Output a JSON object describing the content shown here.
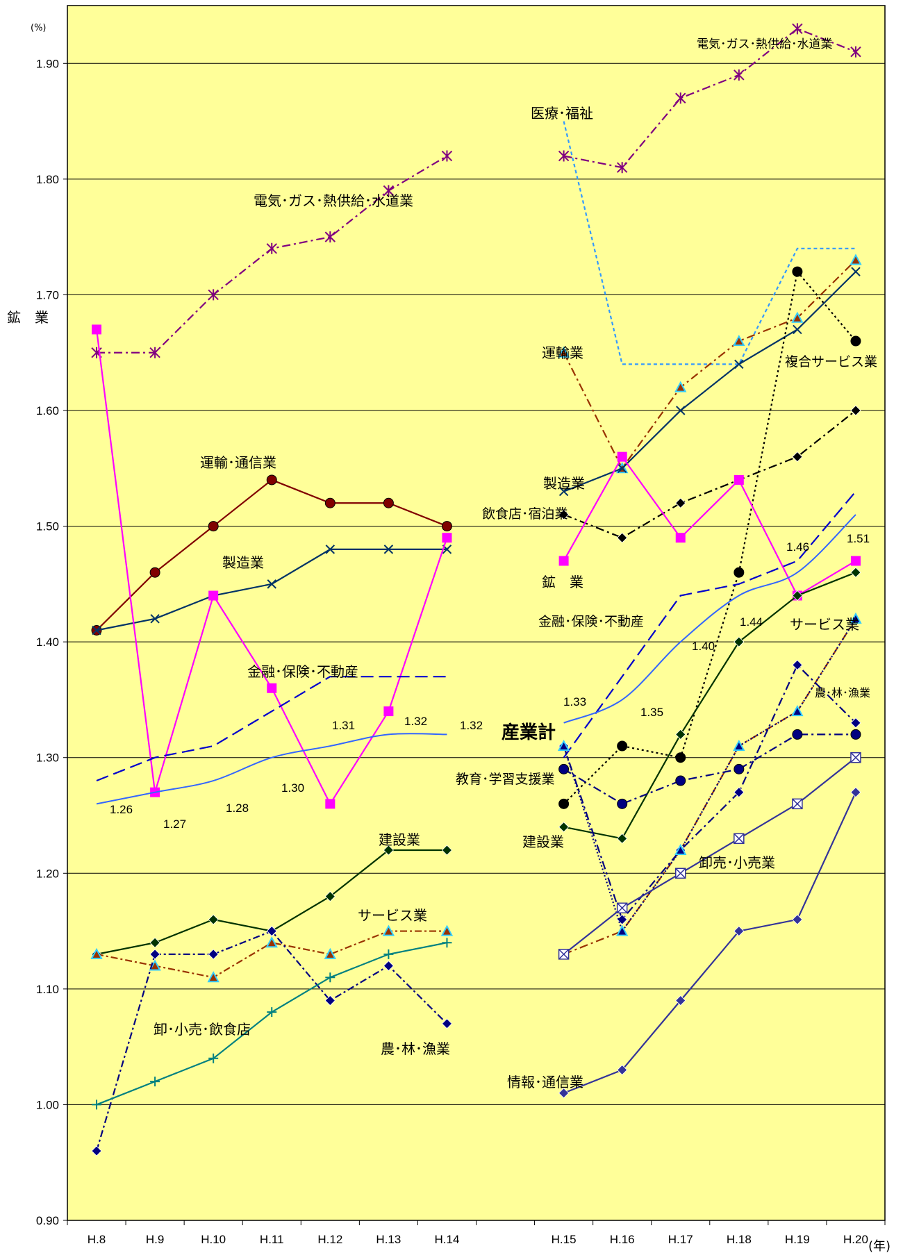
{
  "chart_data": {
    "type": "line",
    "y_unit": "(%)",
    "x_unit": "(年)",
    "ylim": [
      0.9,
      1.95
    ],
    "y_ticks": [
      "0.90",
      "1.00",
      "1.10",
      "1.20",
      "1.30",
      "1.40",
      "1.50",
      "1.60",
      "1.70",
      "1.80",
      "1.90"
    ],
    "y_tick_values": [
      0.9,
      1.0,
      1.1,
      1.2,
      1.3,
      1.4,
      1.5,
      1.6,
      1.7,
      1.8,
      1.9
    ],
    "categories": [
      "H.8",
      "H.9",
      "H.10",
      "H.11",
      "H.12",
      "H.13",
      "H.14",
      "",
      "H.15",
      "H.16",
      "H.17",
      "H.18",
      "H.19",
      "H.20"
    ],
    "grid": true,
    "background": "#FFFF99",
    "series": [
      {
        "id": "elec_old",
        "color": "#800080",
        "dash": "12 5 3 5",
        "marker": "star",
        "values": [
          1.65,
          1.65,
          1.7,
          1.74,
          1.75,
          1.79,
          1.82,
          null,
          null,
          null,
          null,
          null,
          null,
          null
        ]
      },
      {
        "id": "transcom_old",
        "color": "#800000",
        "dash": "",
        "marker": "circle",
        "values": [
          1.41,
          1.46,
          1.5,
          1.54,
          1.52,
          1.52,
          1.5,
          null,
          null,
          null,
          null,
          null,
          null,
          null
        ]
      },
      {
        "id": "mfg_old",
        "color": "#003366",
        "dash": "",
        "marker": "x",
        "values": [
          1.41,
          1.42,
          1.44,
          1.45,
          1.48,
          1.48,
          1.48,
          null,
          null,
          null,
          null,
          null,
          null,
          null
        ]
      },
      {
        "id": "mining_old",
        "color": "#FF00FF",
        "dash": "",
        "marker": "square",
        "values": [
          1.67,
          1.27,
          1.44,
          1.36,
          1.26,
          1.34,
          1.49,
          null,
          null,
          null,
          null,
          null,
          null,
          null
        ]
      },
      {
        "id": "finance_old",
        "color": "#0000CC",
        "dash": "18 8",
        "marker": "none",
        "values": [
          1.28,
          1.3,
          1.31,
          1.34,
          1.37,
          1.37,
          1.37,
          null,
          null,
          null,
          null,
          null,
          null,
          null
        ]
      },
      {
        "id": "total_old",
        "color": "#3366FF",
        "dash": "",
        "marker": "none",
        "smooth": true,
        "values": [
          1.26,
          1.27,
          1.28,
          1.3,
          1.31,
          1.32,
          1.32,
          null,
          null,
          null,
          null,
          null,
          null,
          null
        ]
      },
      {
        "id": "construction_old",
        "color": "#003300",
        "dash": "",
        "marker": "diamond",
        "values": [
          1.13,
          1.14,
          1.16,
          1.15,
          1.18,
          1.22,
          1.22,
          null,
          null,
          null,
          null,
          null,
          null,
          null
        ]
      },
      {
        "id": "service_old",
        "color": "#993300",
        "dash": "10 4 3 4",
        "marker": "triangle",
        "values": [
          1.13,
          1.12,
          1.11,
          1.14,
          1.13,
          1.15,
          1.15,
          null,
          null,
          null,
          null,
          null,
          null,
          null
        ]
      },
      {
        "id": "agri_old",
        "color": "#000080",
        "dash": "10 4 3 4",
        "marker": "diamond",
        "values": [
          0.96,
          1.13,
          1.13,
          1.15,
          1.09,
          1.12,
          1.07,
          null,
          null,
          null,
          null,
          null,
          null,
          null
        ]
      },
      {
        "id": "retail_old",
        "color": "#008080",
        "dash": "",
        "marker": "plus",
        "values": [
          1.0,
          1.02,
          1.04,
          1.08,
          1.11,
          1.13,
          1.14,
          null,
          null,
          null,
          null,
          null,
          null,
          null
        ]
      },
      {
        "id": "elec_new",
        "color": "#800080",
        "dash": "12 5 3 5",
        "marker": "star",
        "values": [
          null,
          null,
          null,
          null,
          null,
          null,
          null,
          null,
          1.82,
          1.81,
          1.87,
          1.89,
          1.93,
          1.91
        ]
      },
      {
        "id": "medical",
        "color": "#3399FF",
        "dash": "5 4",
        "marker": "none",
        "values": [
          null,
          null,
          null,
          null,
          null,
          null,
          null,
          null,
          1.85,
          1.64,
          1.64,
          1.64,
          1.74,
          1.74
        ]
      },
      {
        "id": "transport",
        "color": "#993300",
        "dash": "12 5 3 5",
        "marker": "triangle",
        "values": [
          null,
          null,
          null,
          null,
          null,
          null,
          null,
          null,
          1.65,
          1.55,
          1.62,
          1.66,
          1.68,
          1.73
        ]
      },
      {
        "id": "mfg_new",
        "color": "#003366",
        "dash": "",
        "marker": "x",
        "values": [
          null,
          null,
          null,
          null,
          null,
          null,
          null,
          null,
          1.53,
          1.55,
          1.6,
          1.64,
          1.67,
          1.72
        ]
      },
      {
        "id": "compound",
        "color": "#000000",
        "dash": "3 4",
        "marker": "circle",
        "values": [
          null,
          null,
          null,
          null,
          null,
          null,
          null,
          null,
          1.26,
          1.31,
          1.3,
          1.46,
          1.72,
          1.66
        ]
      },
      {
        "id": "food",
        "color": "#000000",
        "dash": "12 5 3 5",
        "marker": "diamond",
        "values": [
          null,
          null,
          null,
          null,
          null,
          null,
          null,
          null,
          1.51,
          1.49,
          1.52,
          1.54,
          1.56,
          1.6
        ]
      },
      {
        "id": "mining_new",
        "color": "#FF00FF",
        "dash": "",
        "marker": "square",
        "values": [
          null,
          null,
          null,
          null,
          null,
          null,
          null,
          null,
          1.47,
          1.56,
          1.49,
          1.54,
          1.44,
          1.47
        ]
      },
      {
        "id": "finance_new",
        "color": "#0000CC",
        "dash": "18 8",
        "marker": "none",
        "values": [
          null,
          null,
          null,
          null,
          null,
          null,
          null,
          null,
          1.3,
          1.37,
          1.44,
          1.45,
          1.47,
          1.53
        ]
      },
      {
        "id": "total_new",
        "color": "#3366FF",
        "dash": "",
        "marker": "none",
        "smooth": true,
        "values": [
          null,
          null,
          null,
          null,
          null,
          null,
          null,
          null,
          1.33,
          1.35,
          1.4,
          1.44,
          1.46,
          1.51
        ]
      },
      {
        "id": "construction_new",
        "color": "#003300",
        "dash": "",
        "marker": "diamond",
        "values": [
          null,
          null,
          null,
          null,
          null,
          null,
          null,
          null,
          1.24,
          1.23,
          1.32,
          1.4,
          1.44,
          1.46
        ]
      },
      {
        "id": "service_new",
        "color": "#993300",
        "dash": "12 5 3 5",
        "marker": "none",
        "values": [
          null,
          null,
          null,
          null,
          null,
          null,
          null,
          null,
          1.13,
          1.15,
          1.22,
          1.31,
          1.34,
          1.42
        ]
      },
      {
        "id": "agri_new",
        "color": "#000080",
        "dash": "12 5 3 5",
        "marker": "diamond",
        "values": [
          null,
          null,
          null,
          null,
          null,
          null,
          null,
          null,
          1.31,
          1.16,
          1.22,
          1.27,
          1.38,
          1.33
        ]
      },
      {
        "id": "agri_new_tri",
        "color": "#000080",
        "dash": "2 3",
        "marker": "triangle",
        "values": [
          null,
          null,
          null,
          null,
          null,
          null,
          null,
          null,
          1.31,
          1.15,
          1.22,
          1.31,
          1.34,
          1.42
        ]
      },
      {
        "id": "education",
        "color": "#000080",
        "dash": "12 5 3 5",
        "marker": "circle",
        "values": [
          null,
          null,
          null,
          null,
          null,
          null,
          null,
          null,
          1.29,
          1.26,
          1.28,
          1.29,
          1.32,
          1.32
        ]
      },
      {
        "id": "wholesale",
        "color": "#333399",
        "dash": "",
        "marker": "boxx",
        "values": [
          null,
          null,
          null,
          null,
          null,
          null,
          null,
          null,
          1.13,
          1.17,
          1.2,
          1.23,
          1.26,
          1.3
        ]
      },
      {
        "id": "info",
        "color": "#333399",
        "dash": "",
        "marker": "diamond",
        "values": [
          null,
          null,
          null,
          null,
          null,
          null,
          null,
          null,
          1.01,
          1.03,
          1.09,
          1.15,
          1.16,
          1.27
        ]
      }
    ],
    "labels": {
      "l_elec1": "電気･ガス･熱供給･水道業",
      "l_elec2": "電気･ガス･熱供給･水道業",
      "l_medical": "医療･福祉",
      "l_yaxis": "鉱　業",
      "l_unyu": "運輸業",
      "l_fukugo": "複合サービス業",
      "l_untsu": "運輸･通信業",
      "l_seizo1": "製造業",
      "l_seizo2": "製造業",
      "l_inshoku": "飲食店･宿泊業",
      "l_kogyo": "鉱　業",
      "l_kinyu1": "金融･保険･不動産",
      "l_kinyu2": "金融･保険･不動産",
      "l_service1": "サービス業",
      "l_service2": "サービス業",
      "l_norin1": "農･林･漁業",
      "l_norin2": "農･林･漁業",
      "l_total": "産業計",
      "l_kyoiku": "教育･学習支援業",
      "l_kensetsu1": "建設業",
      "l_kensetsu2": "建設業",
      "l_oroshi1": "卸･小売･飲食店",
      "l_oroshi2": "卸売･小売業",
      "l_joho": "情報･通信業"
    },
    "total_value_labels": {
      "v126": "1.26",
      "v127": "1.27",
      "v128": "1.28",
      "v130": "1.30",
      "v131": "1.31",
      "v132a": "1.32",
      "v132b": "1.32",
      "v133": "1.33",
      "v135": "1.35",
      "v140": "1.40",
      "v144": "1.44",
      "v146": "1.46",
      "v151": "1.51"
    }
  }
}
